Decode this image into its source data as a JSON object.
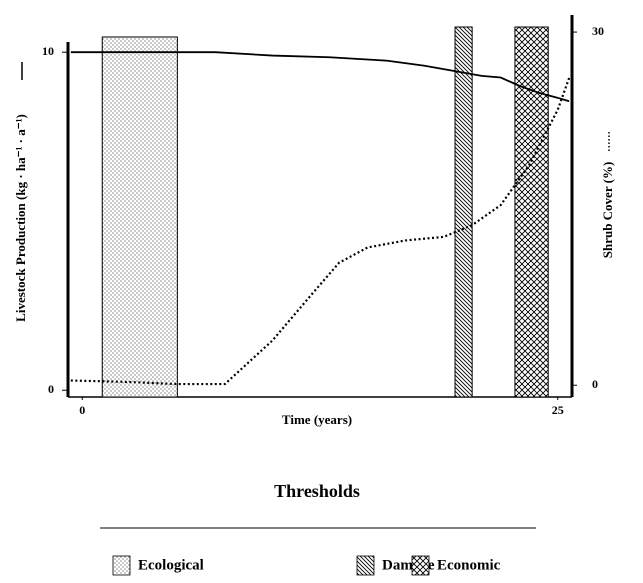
{
  "chart_data": {
    "type": "line",
    "xlabel": "Time (years)",
    "ylabel": "Livestock Production (kg · ha⁻¹ · a⁻¹)",
    "y2label": "Shrub Cover (%)",
    "xlim": [
      -0.75,
      25.75
    ],
    "xticks": [
      0,
      25
    ],
    "ylim": [
      -0.2,
      11.1
    ],
    "yticks": [
      0,
      10
    ],
    "y2lim": [
      -1,
      31.45
    ],
    "y2ticks": [
      0,
      30
    ],
    "series": [
      {
        "name": "Livestock Production",
        "color": "#000000",
        "style": "solid",
        "axis": "y",
        "x": [
          -0.6,
          2,
          5,
          7,
          10,
          13,
          16,
          18,
          20,
          21,
          22,
          23,
          24,
          25,
          25.6
        ],
        "values": [
          10,
          10,
          10,
          10,
          9.9,
          9.85,
          9.75,
          9.6,
          9.4,
          9.3,
          9.25,
          9.0,
          8.8,
          8.65,
          8.55
        ]
      },
      {
        "name": "Shrub Cover",
        "color": "#000000",
        "style": "dotted",
        "axis": "y2",
        "x": [
          -0.6,
          2,
          5,
          7.5,
          10,
          12,
          13.5,
          15,
          17,
          19,
          20.5,
          22,
          23.5,
          25,
          25.6
        ],
        "values": [
          0.4,
          0.3,
          0.1,
          0.1,
          3.8,
          7.6,
          10.4,
          11.7,
          12.3,
          12.6,
          13.6,
          15.3,
          18.7,
          23.4,
          26.1
        ]
      }
    ],
    "legend_title": "Thresholds",
    "bands": [
      {
        "name": "Ecological",
        "pattern": "dots",
        "x": [
          1.05,
          5.0
        ]
      },
      {
        "name": "Damage",
        "pattern": "hatch",
        "x": [
          19.6,
          20.5
        ]
      },
      {
        "name": "Economic",
        "pattern": "cross",
        "x": [
          22.75,
          24.5
        ]
      }
    ]
  }
}
